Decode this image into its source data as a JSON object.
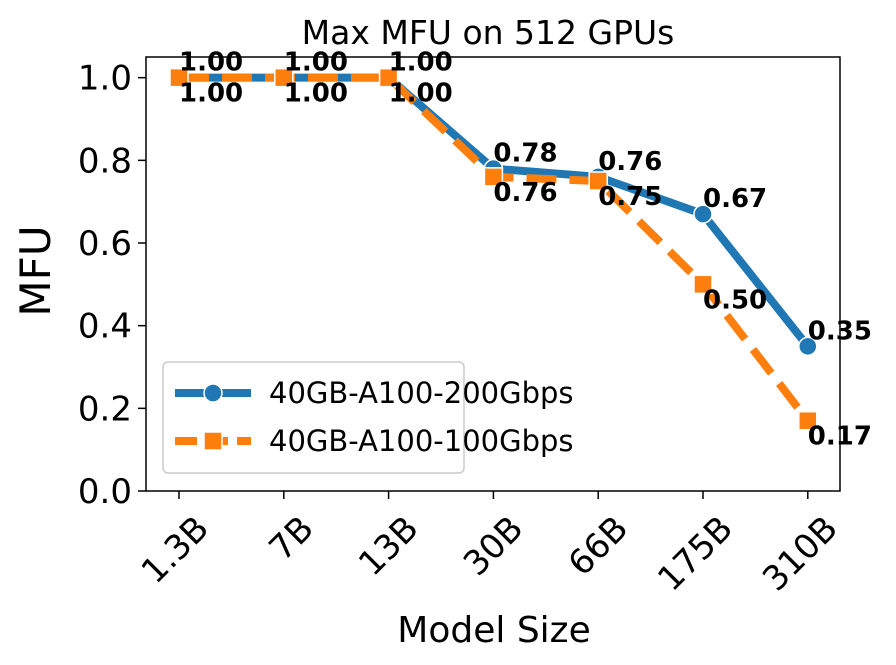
{
  "chart_data": {
    "type": "line",
    "title": "Max MFU on 512 GPUs",
    "xlabel": "Model Size",
    "ylabel": "MFU",
    "categories": [
      "1.3B",
      "7B",
      "13B",
      "30B",
      "66B",
      "175B",
      "310B"
    ],
    "ylim": [
      0.0,
      1.05
    ],
    "yticks": [
      "0.0",
      "0.2",
      "0.4",
      "0.6",
      "0.8",
      "1.0"
    ],
    "legend_position": "lower-left",
    "series": [
      {
        "name": "40GB-A100-200Gbps",
        "values": [
          1.0,
          1.0,
          1.0,
          0.78,
          0.76,
          0.67,
          0.35
        ],
        "labels": [
          "1.00",
          "1.00",
          "1.00",
          "0.78",
          "0.76",
          "0.67",
          "0.35"
        ],
        "color": "#1f77b4",
        "marker": "circle",
        "linestyle": "solid"
      },
      {
        "name": "40GB-A100-100Gbps",
        "values": [
          1.0,
          1.0,
          1.0,
          0.76,
          0.75,
          0.5,
          0.17
        ],
        "labels": [
          "1.00",
          "1.00",
          "1.00",
          "0.76",
          "0.75",
          "0.50",
          "0.17"
        ],
        "color": "#ff7f0e",
        "marker": "square",
        "linestyle": "dashed"
      }
    ]
  }
}
